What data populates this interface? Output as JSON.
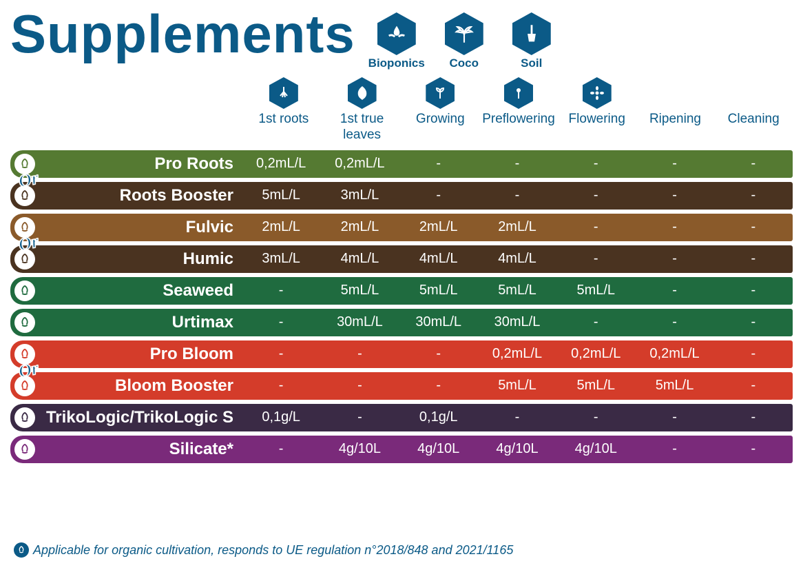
{
  "colors": {
    "brand": "#0b5a87",
    "text_brand": "#0b5a87",
    "green_dark": "#2e6b2e",
    "green_mid": "#1f6b3f",
    "brown_dark": "#4a3320",
    "brown_light": "#8a5a2a",
    "red": "#d43c2a",
    "purple_dark": "#3a2a45",
    "purple": "#7a2a7a",
    "white": "#ffffff"
  },
  "title": "Supplements",
  "media": [
    {
      "label": "Bioponics",
      "icon": "hands-drop"
    },
    {
      "label": "Coco",
      "icon": "palm"
    },
    {
      "label": "Soil",
      "icon": "shovel"
    }
  ],
  "stages": [
    {
      "label": "1st roots",
      "icon": "roots"
    },
    {
      "label": "1st true\nleaves",
      "icon": "leaf"
    },
    {
      "label": "Growing",
      "icon": "sprout"
    },
    {
      "label": "Preflowering",
      "icon": "bud"
    },
    {
      "label": "Flowering",
      "icon": "flower"
    },
    {
      "label": "Ripening",
      "icon": null
    },
    {
      "label": "Cleaning",
      "icon": null
    }
  ],
  "or_groups": [
    [
      0,
      1
    ],
    [
      2,
      3
    ],
    [
      6,
      7
    ]
  ],
  "or_label": "Or",
  "rows": [
    {
      "name": "Pro Roots",
      "bg": "#557a32",
      "badge_bg": "#ffffff",
      "badge_fg": "#557a32",
      "values": [
        "0,2mL/L",
        "0,2mL/L",
        "-",
        "-",
        "-",
        "-",
        "-"
      ]
    },
    {
      "name": "Roots Booster",
      "bg": "#4a3320",
      "badge_bg": "#ffffff",
      "badge_fg": "#4a3320",
      "values": [
        "5mL/L",
        "3mL/L",
        "-",
        "-",
        "-",
        "-",
        "-"
      ]
    },
    {
      "name": "Fulvic",
      "bg": "#8a5a2a",
      "badge_bg": "#ffffff",
      "badge_fg": "#8a5a2a",
      "values": [
        "2mL/L",
        "2mL/L",
        "2mL/L",
        "2mL/L",
        "-",
        "-",
        "-"
      ]
    },
    {
      "name": "Humic",
      "bg": "#4a3320",
      "badge_bg": "#ffffff",
      "badge_fg": "#4a3320",
      "values": [
        "3mL/L",
        "4mL/L",
        "4mL/L",
        "4mL/L",
        "-",
        "-",
        "-"
      ]
    },
    {
      "name": "Seaweed",
      "bg": "#1f6b3f",
      "badge_bg": "#ffffff",
      "badge_fg": "#1f6b3f",
      "values": [
        "-",
        "5mL/L",
        "5mL/L",
        "5mL/L",
        "5mL/L",
        "-",
        "-"
      ]
    },
    {
      "name": "Urtimax",
      "bg": "#1f6b3f",
      "badge_bg": "#ffffff",
      "badge_fg": "#1f6b3f",
      "values": [
        "-",
        "30mL/L",
        "30mL/L",
        "30mL/L",
        "-",
        "-",
        "-"
      ]
    },
    {
      "name": "Pro Bloom",
      "bg": "#d43c2a",
      "badge_bg": "#ffffff",
      "badge_fg": "#d43c2a",
      "values": [
        "-",
        "-",
        "-",
        "0,2mL/L",
        "0,2mL/L",
        "0,2mL/L",
        "-"
      ]
    },
    {
      "name": "Bloom Booster",
      "bg": "#d43c2a",
      "badge_bg": "#ffffff",
      "badge_fg": "#d43c2a",
      "values": [
        "-",
        "-",
        "-",
        "5mL/L",
        "5mL/L",
        "5mL/L",
        "-"
      ]
    },
    {
      "name": "TrikoLogic/TrikoLogic S",
      "bg": "#3a2a45",
      "badge_bg": "#ffffff",
      "badge_fg": "#3a2a45",
      "values": [
        "0,1g/L",
        "-",
        "0,1g/L",
        "-",
        "-",
        "-",
        "-"
      ]
    },
    {
      "name": "Silicate*",
      "bg": "#7a2a7a",
      "badge_bg": "#ffffff",
      "badge_fg": "#7a2a7a",
      "values": [
        "-",
        "4g/10L",
        "4g/10L",
        "4g/10L",
        "4g/10L",
        "-",
        "-"
      ]
    }
  ],
  "footnote": "Applicable for organic cultivation, responds to UE regulation n°2018/848 and 2021/1165",
  "fonts": {
    "title_size": 78,
    "row_name_size": 24,
    "cell_size": 20,
    "stage_size": 19,
    "media_label_size": 17,
    "footnote_size": 18
  }
}
